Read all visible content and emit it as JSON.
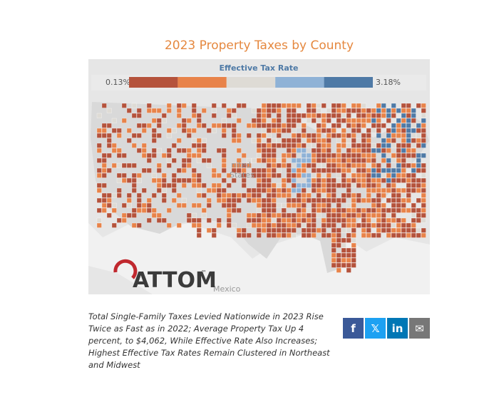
{
  "header": {
    "title": "2023 Property Taxes by County"
  },
  "legend": {
    "title": "Effective Tax Rate",
    "min_label": "0.13%",
    "max_label": "3.18%",
    "colors": [
      "#b5533c",
      "#e8834a",
      "#dedbd5",
      "#8fb2d6",
      "#4f7aa6"
    ]
  },
  "map": {
    "labels": [
      "nited",
      "States",
      "Mexico"
    ]
  },
  "logo": {
    "text": "ATTOM",
    "mark": "™"
  },
  "caption": "Total Single-Family Taxes Levied Nationwide in 2023 Rise Twice as Fast as in 2022; Average Property Tax Up 4 percent, to $4,062, While Effective Rate Also Increases; Highest Effective Tax Rates Remain Clustered in Northeast and Midwest",
  "share": {
    "buttons": [
      "f",
      "𝕏",
      "in",
      "✉"
    ]
  }
}
